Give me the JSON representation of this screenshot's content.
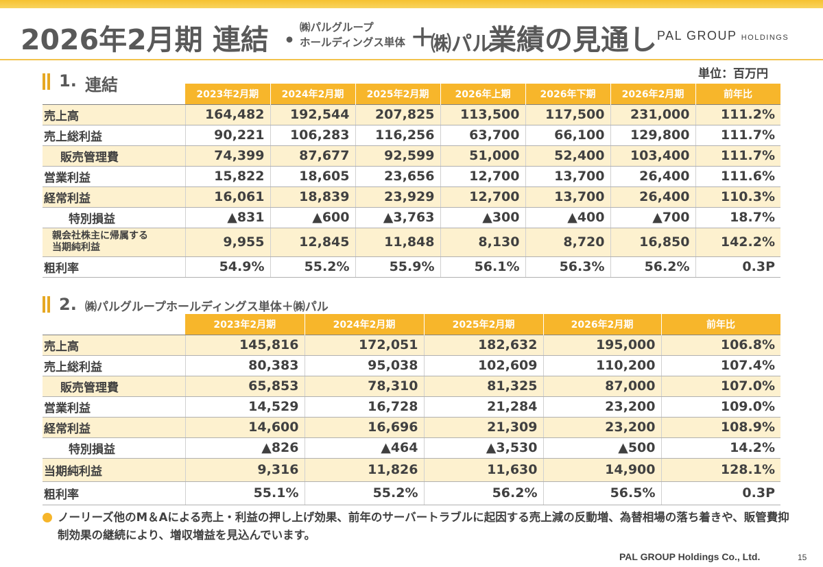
{
  "header": {
    "title_main": "2026年2月期 連結",
    "title_dot": "・",
    "title_small_line1": "㈱パルグループ",
    "title_small_line2": "ホールディングス単体",
    "title_plus": "＋",
    "title_pal": "㈱パル",
    "title_tail": "業績の見通し",
    "logo_main": "PAL GROUP",
    "logo_sub": "HOLDINGS"
  },
  "unit_label": "単位：百万円",
  "section1": {
    "number": "1.",
    "title": "連結",
    "columns": [
      "2023年2月期",
      "2024年2月期",
      "2025年2月期",
      "2026年上期",
      "2026年下期",
      "2026年2月期",
      "前年比"
    ],
    "rows": [
      {
        "label": "売上高",
        "values": [
          "164,482",
          "192,544",
          "207,825",
          "113,500",
          "117,500",
          "231,000",
          "111.2%"
        ]
      },
      {
        "label": "売上総利益",
        "values": [
          "90,221",
          "106,283",
          "116,256",
          "63,700",
          "66,100",
          "129,800",
          "111.7%"
        ]
      },
      {
        "label": "販売管理費",
        "values": [
          "74,399",
          "87,677",
          "92,599",
          "51,000",
          "52,400",
          "103,400",
          "111.7%"
        ]
      },
      {
        "label": "営業利益",
        "values": [
          "15,822",
          "18,605",
          "23,656",
          "12,700",
          "13,700",
          "26,400",
          "111.6%"
        ]
      },
      {
        "label": "経常利益",
        "values": [
          "16,061",
          "18,839",
          "23,929",
          "12,700",
          "13,700",
          "26,400",
          "110.3%"
        ]
      },
      {
        "label": "特別損益",
        "values": [
          "▲831",
          "▲600",
          "▲3,763",
          "▲300",
          "▲400",
          "▲700",
          "18.7%"
        ]
      },
      {
        "label_line1": "親会社株主に帰属する",
        "label_line2": "当期純利益",
        "values": [
          "9,955",
          "12,845",
          "11,848",
          "8,130",
          "8,720",
          "16,850",
          "142.2%"
        ]
      },
      {
        "label": "粗利率",
        "values": [
          "54.9%",
          "55.2%",
          "55.9%",
          "56.1%",
          "56.3%",
          "56.2%",
          "0.3P"
        ]
      }
    ]
  },
  "section2": {
    "number": "2.",
    "title": "㈱パルグループホールディングス単体＋㈱パル",
    "columns": [
      "2023年2月期",
      "2024年2月期",
      "2025年2月期",
      "2026年2月期",
      "前年比"
    ],
    "rows": [
      {
        "label": "売上高",
        "values": [
          "145,816",
          "172,051",
          "182,632",
          "195,000",
          "106.8%"
        ]
      },
      {
        "label": "売上総利益",
        "values": [
          "80,383",
          "95,038",
          "102,609",
          "110,200",
          "107.4%"
        ]
      },
      {
        "label": "販売管理費",
        "values": [
          "65,853",
          "78,310",
          "81,325",
          "87,000",
          "107.0%"
        ]
      },
      {
        "label": "営業利益",
        "values": [
          "14,529",
          "16,728",
          "21,284",
          "23,200",
          "109.0%"
        ]
      },
      {
        "label": "経常利益",
        "values": [
          "14,600",
          "16,696",
          "21,309",
          "23,200",
          "108.9%"
        ]
      },
      {
        "label": "特別損益",
        "values": [
          "▲826",
          "▲464",
          "▲3,530",
          "▲500",
          "14.2%"
        ]
      },
      {
        "label": "当期純利益",
        "values": [
          "9,316",
          "11,826",
          "11,630",
          "14,900",
          "128.1%"
        ]
      },
      {
        "label": "粗利率",
        "values": [
          "55.1%",
          "55.2%",
          "56.2%",
          "56.5%",
          "0.3P"
        ]
      }
    ]
  },
  "note": "ノーリーズ他のM＆Aによる売上・利益の押し上げ効果、前年のサーバートラブルに起因する売上減の反動増、為替相場の落ち着きや、販管費抑制効果の継続により、増収増益を見込んでいます。",
  "footer": {
    "company": "PAL GROUP Holdings Co., Ltd.",
    "page": "15"
  },
  "colors": {
    "accent": "#f7b62b",
    "highlight_row": "#fdf1cf",
    "title_text": "#595959"
  }
}
